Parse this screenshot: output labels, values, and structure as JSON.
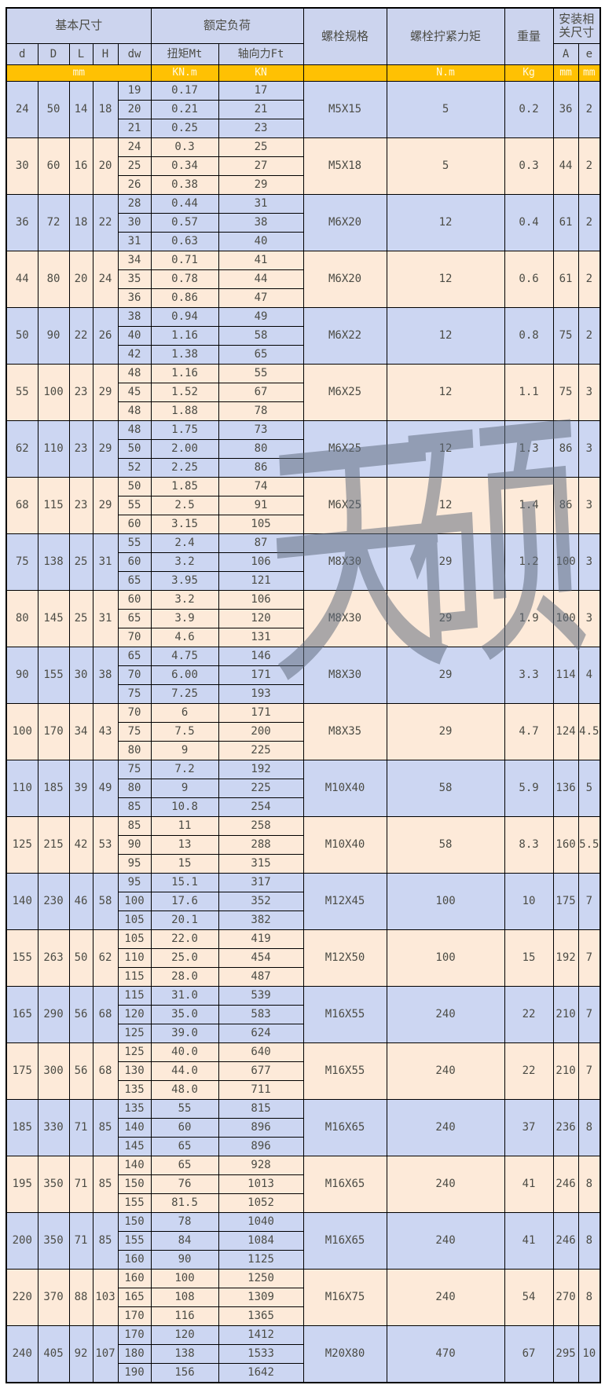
{
  "header": {
    "basic": "基本尺寸",
    "load": "额定负荷",
    "bolt_spec": "螺栓规格",
    "tightening": "螺栓拧紧力矩",
    "weight": "重量",
    "install": "安装相关尺寸",
    "sub": {
      "d": "d",
      "D": "D",
      "L": "L",
      "H": "H",
      "dw": "dw",
      "mt": "扭矩Mt",
      "ft": "轴向力Ft",
      "A": "A",
      "e": "e"
    },
    "units": {
      "mm": "mm",
      "knm": "KN.m",
      "kn": "KN",
      "bolt": "",
      "nm": "N.m",
      "kg": "Kg",
      "a_mm": "mm",
      "e_mm": "mm"
    }
  },
  "watermark": {
    "text": "天硕"
  },
  "colors": {
    "row_blue": "#ccd6f2",
    "row_cream": "#fdead9",
    "header_blue": "#ccd4ee",
    "unit_gold": "#ffc103",
    "unit_text": "#fffadf",
    "border": "#000000",
    "text": "#4c4c45"
  },
  "groups": [
    {
      "d": "24",
      "D": "50",
      "L": "14",
      "H": "18",
      "rows": [
        [
          "19",
          "0.17",
          "17"
        ],
        [
          "20",
          "0.21",
          "21"
        ],
        [
          "21",
          "0.25",
          "23"
        ]
      ],
      "bolt": "M5X15",
      "torque": "5",
      "weight": "0.2",
      "A": "36",
      "e": "2"
    },
    {
      "d": "30",
      "D": "60",
      "L": "16",
      "H": "20",
      "rows": [
        [
          "24",
          "0.3",
          "25"
        ],
        [
          "25",
          "0.34",
          "27"
        ],
        [
          "26",
          "0.38",
          "29"
        ]
      ],
      "bolt": "M5X18",
      "torque": "5",
      "weight": "0.3",
      "A": "44",
      "e": "2"
    },
    {
      "d": "36",
      "D": "72",
      "L": "18",
      "H": "22",
      "rows": [
        [
          "28",
          "0.44",
          "31"
        ],
        [
          "30",
          "0.57",
          "38"
        ],
        [
          "31",
          "0.63",
          "40"
        ]
      ],
      "bolt": "M6X20",
      "torque": "12",
      "weight": "0.4",
      "A": "61",
      "e": "2"
    },
    {
      "d": "44",
      "D": "80",
      "L": "20",
      "H": "24",
      "rows": [
        [
          "34",
          "0.71",
          "41"
        ],
        [
          "35",
          "0.78",
          "44"
        ],
        [
          "36",
          "0.86",
          "47"
        ]
      ],
      "bolt": "M6X20",
      "torque": "12",
      "weight": "0.6",
      "A": "61",
      "e": "2"
    },
    {
      "d": "50",
      "D": "90",
      "L": "22",
      "H": "26",
      "rows": [
        [
          "38",
          "0.94",
          "49"
        ],
        [
          "40",
          "1.16",
          "58"
        ],
        [
          "42",
          "1.38",
          "65"
        ]
      ],
      "bolt": "M6X22",
      "torque": "12",
      "weight": "0.8",
      "A": "75",
      "e": "2"
    },
    {
      "d": "55",
      "D": "100",
      "L": "23",
      "H": "29",
      "rows": [
        [
          "48",
          "1.16",
          "55"
        ],
        [
          "45",
          "1.52",
          "67"
        ],
        [
          "48",
          "1.88",
          "78"
        ]
      ],
      "bolt": "M6X25",
      "torque": "12",
      "weight": "1.1",
      "A": "75",
      "e": "3"
    },
    {
      "d": "62",
      "D": "110",
      "L": "23",
      "H": "29",
      "rows": [
        [
          "48",
          "1.75",
          "73"
        ],
        [
          "50",
          "2.00",
          "80"
        ],
        [
          "52",
          "2.25",
          "86"
        ]
      ],
      "bolt": "M6X25",
      "torque": "12",
      "weight": "1.3",
      "A": "86",
      "e": "3"
    },
    {
      "d": "68",
      "D": "115",
      "L": "23",
      "H": "29",
      "rows": [
        [
          "50",
          "1.85",
          "74"
        ],
        [
          "55",
          "2.5",
          "91"
        ],
        [
          "60",
          "3.15",
          "105"
        ]
      ],
      "bolt": "M6X25",
      "torque": "12",
      "weight": "1.4",
      "A": "86",
      "e": "3"
    },
    {
      "d": "75",
      "D": "138",
      "L": "25",
      "H": "31",
      "rows": [
        [
          "55",
          "2.4",
          "87"
        ],
        [
          "60",
          "3.2",
          "106"
        ],
        [
          "65",
          "3.95",
          "121"
        ]
      ],
      "bolt": "M8X30",
      "torque": "29",
      "weight": "1.2",
      "A": "100",
      "e": "3"
    },
    {
      "d": "80",
      "D": "145",
      "L": "25",
      "H": "31",
      "rows": [
        [
          "60",
          "3.2",
          "106"
        ],
        [
          "65",
          "3.9",
          "120"
        ],
        [
          "70",
          "4.6",
          "131"
        ]
      ],
      "bolt": "M8X30",
      "torque": "29",
      "weight": "1.9",
      "A": "100",
      "e": "3"
    },
    {
      "d": "90",
      "D": "155",
      "L": "30",
      "H": "38",
      "rows": [
        [
          "65",
          "4.75",
          "146"
        ],
        [
          "70",
          "6.00",
          "171"
        ],
        [
          "75",
          "7.25",
          "193"
        ]
      ],
      "bolt": "M8X30",
      "torque": "29",
      "weight": "3.3",
      "A": "114",
      "e": "4"
    },
    {
      "d": "100",
      "D": "170",
      "L": "34",
      "H": "43",
      "rows": [
        [
          "70",
          "6",
          "171"
        ],
        [
          "75",
          "7.5",
          "200"
        ],
        [
          "80",
          "9",
          "225"
        ]
      ],
      "bolt": "M8X35",
      "torque": "29",
      "weight": "4.7",
      "A": "124",
      "e": "4.5"
    },
    {
      "d": "110",
      "D": "185",
      "L": "39",
      "H": "49",
      "rows": [
        [
          "75",
          "7.2",
          "192"
        ],
        [
          "80",
          "9",
          "225"
        ],
        [
          "85",
          "10.8",
          "254"
        ]
      ],
      "bolt": "M10X40",
      "torque": "58",
      "weight": "5.9",
      "A": "136",
      "e": "5"
    },
    {
      "d": "125",
      "D": "215",
      "L": "42",
      "H": "53",
      "rows": [
        [
          "85",
          "11",
          "258"
        ],
        [
          "90",
          "13",
          "288"
        ],
        [
          "95",
          "15",
          "315"
        ]
      ],
      "bolt": "M10X40",
      "torque": "58",
      "weight": "8.3",
      "A": "160",
      "e": "5.5"
    },
    {
      "d": "140",
      "D": "230",
      "L": "46",
      "H": "58",
      "rows": [
        [
          "95",
          "15.1",
          "317"
        ],
        [
          "100",
          "17.6",
          "352"
        ],
        [
          "105",
          "20.1",
          "382"
        ]
      ],
      "bolt": "M12X45",
      "torque": "100",
      "weight": "10",
      "A": "175",
      "e": "7"
    },
    {
      "d": "155",
      "D": "263",
      "L": "50",
      "H": "62",
      "rows": [
        [
          "105",
          "22.0",
          "419"
        ],
        [
          "110",
          "25.0",
          "454"
        ],
        [
          "115",
          "28.0",
          "487"
        ]
      ],
      "bolt": "M12X50",
      "torque": "100",
      "weight": "15",
      "A": "192",
      "e": "7"
    },
    {
      "d": "165",
      "D": "290",
      "L": "56",
      "H": "68",
      "rows": [
        [
          "115",
          "31.0",
          "539"
        ],
        [
          "120",
          "35.0",
          "583"
        ],
        [
          "125",
          "39.0",
          "624"
        ]
      ],
      "bolt": "M16X55",
      "torque": "240",
      "weight": "22",
      "A": "210",
      "e": "7"
    },
    {
      "d": "175",
      "D": "300",
      "L": "56",
      "H": "68",
      "rows": [
        [
          "125",
          "40.0",
          "640"
        ],
        [
          "130",
          "44.0",
          "677"
        ],
        [
          "135",
          "48.0",
          "711"
        ]
      ],
      "bolt": "M16X55",
      "torque": "240",
      "weight": "22",
      "A": "210",
      "e": "7"
    },
    {
      "d": "185",
      "D": "330",
      "L": "71",
      "H": "85",
      "rows": [
        [
          "135",
          "55",
          "815"
        ],
        [
          "140",
          "60",
          "896"
        ],
        [
          "145",
          "65",
          "896"
        ]
      ],
      "bolt": "M16X65",
      "torque": "240",
      "weight": "37",
      "A": "236",
      "e": "8"
    },
    {
      "d": "195",
      "D": "350",
      "L": "71",
      "H": "85",
      "rows": [
        [
          "140",
          "65",
          "928"
        ],
        [
          "150",
          "76",
          "1013"
        ],
        [
          "155",
          "81.5",
          "1052"
        ]
      ],
      "bolt": "M16X65",
      "torque": "240",
      "weight": "41",
      "A": "246",
      "e": "8"
    },
    {
      "d": "200",
      "D": "350",
      "L": "71",
      "H": "85",
      "rows": [
        [
          "150",
          "78",
          "1040"
        ],
        [
          "155",
          "84",
          "1084"
        ],
        [
          "160",
          "90",
          "1125"
        ]
      ],
      "bolt": "M16X65",
      "torque": "240",
      "weight": "41",
      "A": "246",
      "e": "8"
    },
    {
      "d": "220",
      "D": "370",
      "L": "88",
      "H": "103",
      "rows": [
        [
          "160",
          "100",
          "1250"
        ],
        [
          "165",
          "108",
          "1309"
        ],
        [
          "170",
          "116",
          "1365"
        ]
      ],
      "bolt": "M16X75",
      "torque": "240",
      "weight": "54",
      "A": "270",
      "e": "8"
    },
    {
      "d": "240",
      "D": "405",
      "L": "92",
      "H": "107",
      "rows": [
        [
          "170",
          "120",
          "1412"
        ],
        [
          "180",
          "138",
          "1533"
        ],
        [
          "190",
          "156",
          "1642"
        ]
      ],
      "bolt": "M20X80",
      "torque": "470",
      "weight": "67",
      "A": "295",
      "e": "10"
    }
  ]
}
